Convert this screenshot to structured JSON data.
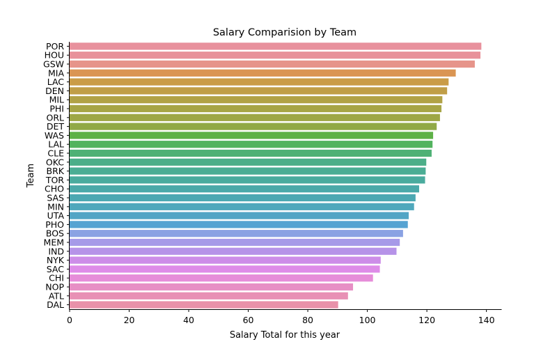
{
  "chart_data": {
    "type": "bar",
    "orientation": "horizontal",
    "title": "Salary Comparision by Team",
    "xlabel": "Salary Total for this year",
    "ylabel": "Team",
    "xlim": [
      0,
      145
    ],
    "xticks": [
      0,
      20,
      40,
      60,
      80,
      100,
      120,
      140
    ],
    "grid": false,
    "categories": [
      "POR",
      "HOU",
      "GSW",
      "MIA",
      "LAC",
      "DEN",
      "MIL",
      "PHI",
      "ORL",
      "DET",
      "WAS",
      "LAL",
      "CLE",
      "OKC",
      "BRK",
      "TOR",
      "CHO",
      "SAS",
      "MIN",
      "UTA",
      "PHO",
      "BOS",
      "MEM",
      "IND",
      "NYK",
      "SAC",
      "CHI",
      "NOP",
      "ATL",
      "DAL"
    ],
    "values": [
      138.3,
      138.0,
      136.1,
      129.7,
      127.3,
      126.8,
      125.2,
      124.9,
      124.4,
      123.3,
      122.1,
      121.9,
      121.6,
      119.8,
      119.6,
      119.4,
      117.4,
      116.2,
      115.7,
      113.9,
      113.6,
      112.0,
      110.9,
      109.8,
      104.5,
      104.2,
      101.9,
      95.2,
      93.5,
      90.2
    ],
    "colors": [
      "#e8919d",
      "#e8919a",
      "#e6948a",
      "#da9553",
      "#ca9c47",
      "#c09e47",
      "#b1a246",
      "#a7a546",
      "#9ea746",
      "#91a946",
      "#5eb146",
      "#52b35e",
      "#4eb175",
      "#4cae89",
      "#4bad94",
      "#4aab9e",
      "#4ba9a9",
      "#4ca8b2",
      "#4fa8bc",
      "#52a5c5",
      "#56a3d2",
      "#8aa2e3",
      "#a69ae8",
      "#b693e8",
      "#cd8de8",
      "#de8ce8",
      "#e68dd9",
      "#e78fc5",
      "#e890b5",
      "#e891a9"
    ]
  }
}
